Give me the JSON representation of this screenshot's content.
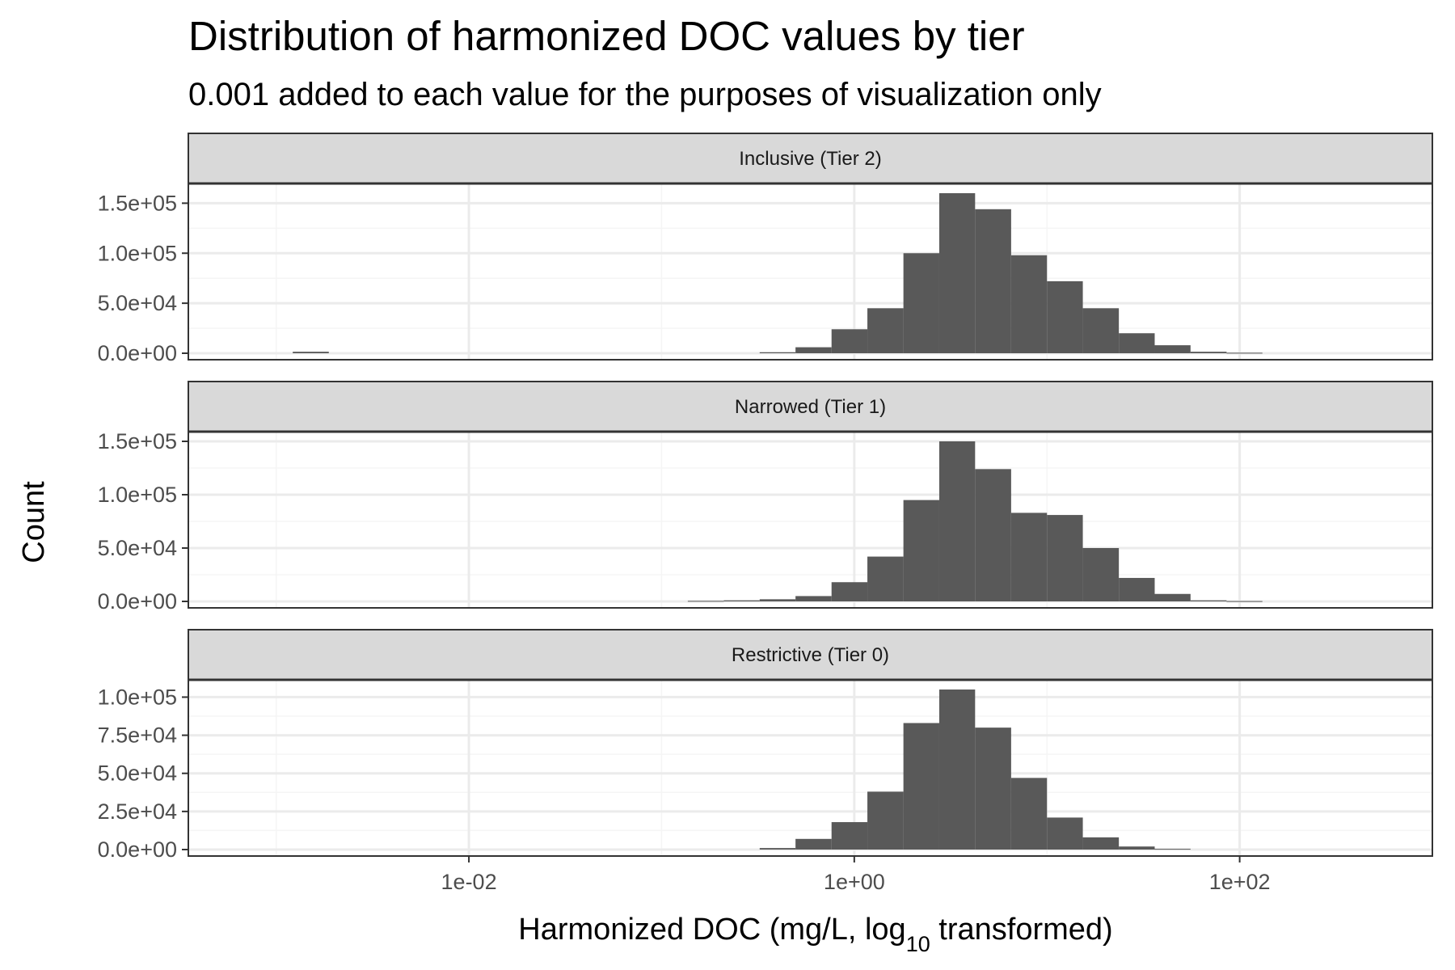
{
  "chart_data": {
    "type": "bar",
    "title": "Distribution of harmonized DOC values by tier",
    "subtitle": "0.001 added to each value for the purposes of visualization only",
    "xlabel": "Harmonized DOC (mg/L, ",
    "xlabel_log": "log",
    "xlabel_log_sub": "10",
    "xlabel_rest": " transformed)",
    "ylabel": "Count",
    "x_scale": "log10",
    "x_ticks": [
      {
        "value": 0.01,
        "label": "1e-02"
      },
      {
        "value": 1,
        "label": "1e+00"
      },
      {
        "value": 100,
        "label": "1e+02"
      }
    ],
    "x_range": [
      0.00035,
      1000
    ],
    "bin_edges_log10": [
      -3.1,
      -2.914,
      -2.727,
      -2.541,
      -2.355,
      -2.168,
      -1.982,
      -1.795,
      -1.609,
      -1.423,
      -1.236,
      -1.05,
      -0.864,
      -0.677,
      -0.491,
      -0.305,
      -0.118,
      0.068,
      0.255,
      0.441,
      0.627,
      0.814,
      1.0,
      1.186,
      1.373,
      1.559,
      1.745,
      1.932,
      2.118
    ],
    "grid": true,
    "panels": [
      {
        "label": "Inclusive (Tier 2)",
        "ylim": [
          0,
          160000
        ],
        "y_ticks": [
          0,
          50000,
          100000,
          150000
        ],
        "y_tick_labels": [
          "0.0e+00",
          "5.0e+04",
          "1.0e+05",
          "1.5e+05"
        ],
        "counts": [
          0,
          1500,
          0,
          0,
          0,
          0,
          0,
          0,
          0,
          0,
          0,
          0,
          0,
          0,
          1000,
          6000,
          24000,
          45000,
          100000,
          160000,
          144000,
          98000,
          72000,
          45000,
          20000,
          8000,
          1500,
          500
        ]
      },
      {
        "label": "Narrowed (Tier 1)",
        "ylim": [
          0,
          150000
        ],
        "y_ticks": [
          0,
          50000,
          100000,
          150000
        ],
        "y_tick_labels": [
          "0.0e+00",
          "5.0e+04",
          "1.0e+05",
          "1.5e+05"
        ],
        "counts": [
          0,
          0,
          0,
          0,
          0,
          0,
          0,
          0,
          0,
          0,
          0,
          0,
          500,
          1000,
          2000,
          5000,
          18000,
          42000,
          95000,
          150000,
          124000,
          83000,
          81000,
          50000,
          22000,
          7000,
          1000,
          300
        ]
      },
      {
        "label": "Restrictive (Tier 0)",
        "ylim": [
          0,
          105000
        ],
        "y_ticks": [
          0,
          25000,
          50000,
          75000,
          100000
        ],
        "y_tick_labels": [
          "0.0e+00",
          "2.5e+04",
          "5.0e+04",
          "7.5e+04",
          "1.0e+05"
        ],
        "counts": [
          0,
          0,
          0,
          0,
          0,
          0,
          0,
          0,
          0,
          0,
          0,
          0,
          0,
          0,
          1000,
          7000,
          18000,
          38000,
          83000,
          105000,
          80000,
          47000,
          21000,
          8000,
          2000,
          500,
          0,
          0
        ]
      }
    ]
  },
  "colors": {
    "bar_fill": "#595959",
    "strip_fill": "#d9d9d9",
    "border": "#333333",
    "grid_major": "#ebebeb",
    "grid_minor": "#f5f5f5"
  }
}
